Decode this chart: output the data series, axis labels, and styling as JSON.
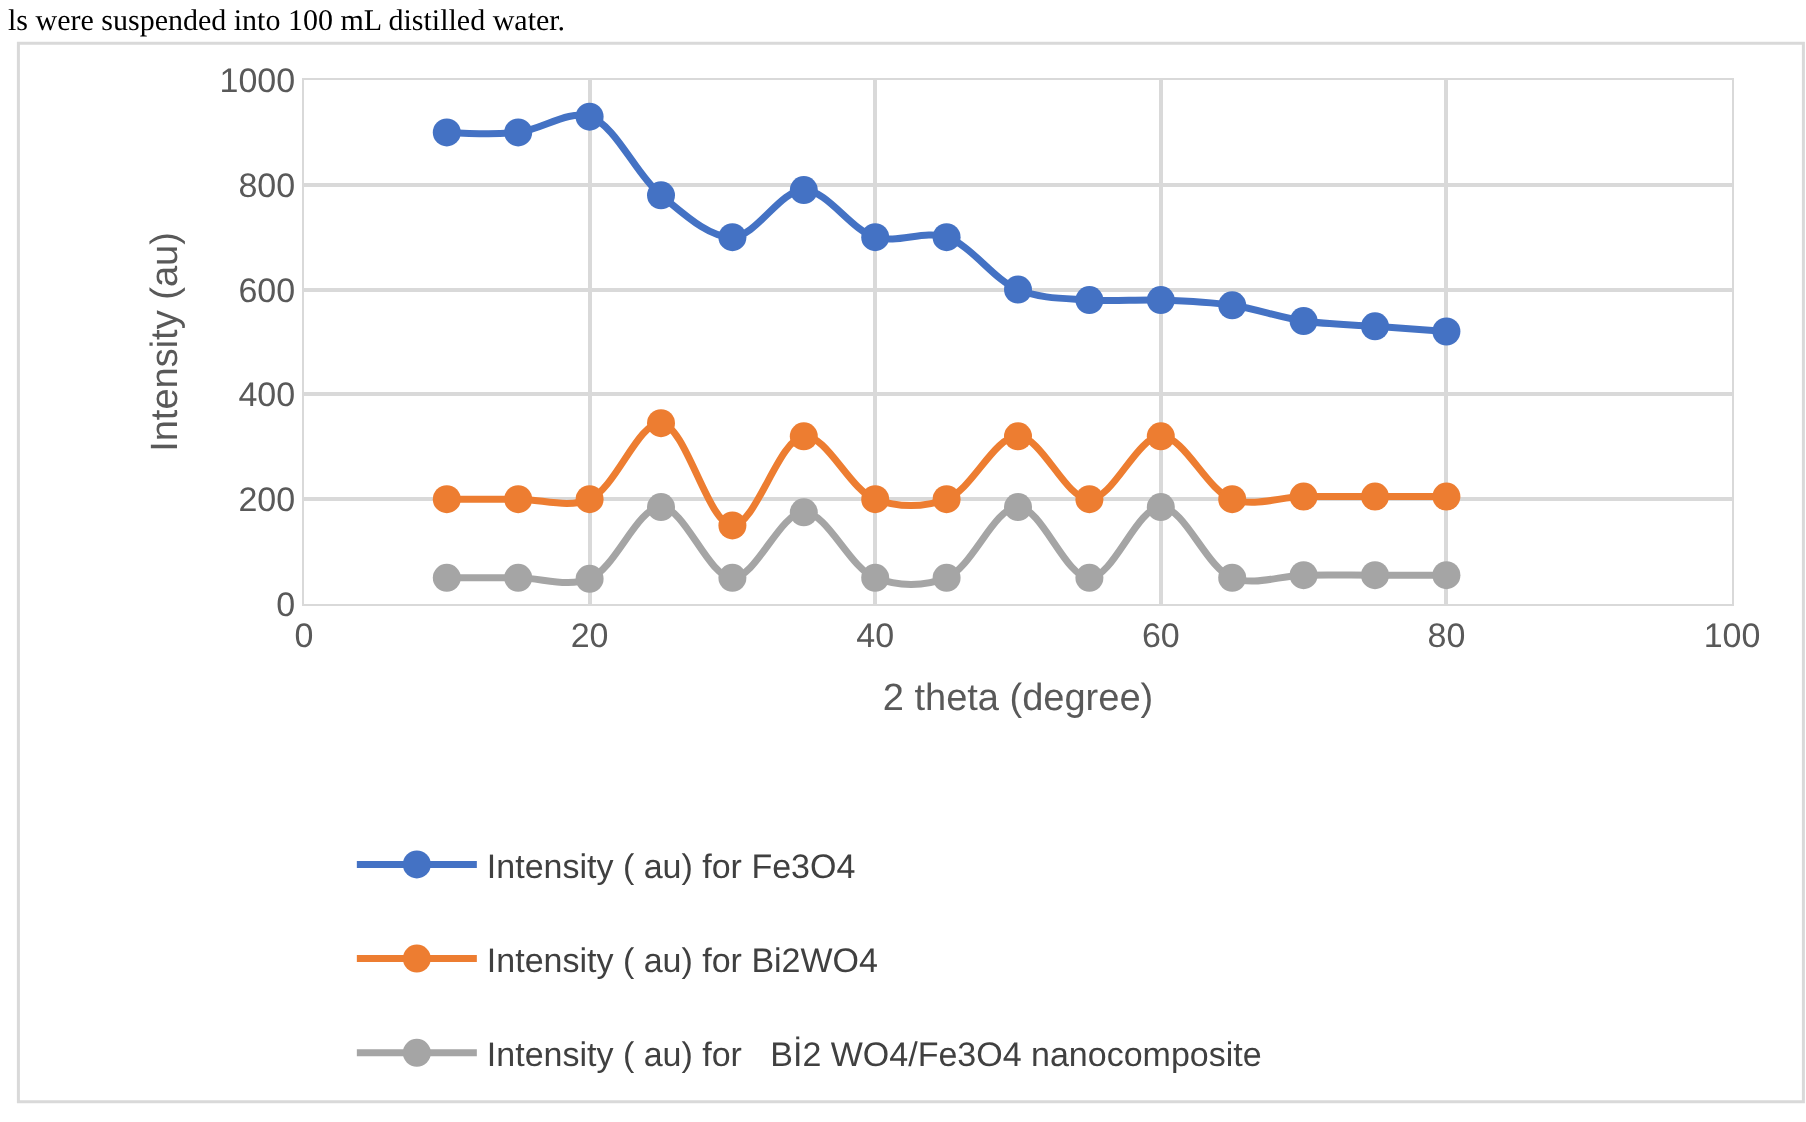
{
  "chart_data": {
    "type": "line",
    "xlabel": "2 theta (degree)",
    "ylabel": "Intensity (au)",
    "annotations": [
      "ls were suspended into 100 mL distilled water."
    ],
    "x": [
      10,
      15,
      20,
      25,
      30,
      35,
      40,
      45,
      50,
      55,
      60,
      65,
      70,
      75,
      80
    ],
    "series": [
      {
        "name": "Intensity ( au) for Fe3O4",
        "color": "#4472c4",
        "values": [
          900,
          900,
          930,
          780,
          700,
          790,
          700,
          700,
          600,
          580,
          580,
          570,
          540,
          530,
          520
        ]
      },
      {
        "name": "Intensity ( au) for Bi2WO4",
        "color": "#ed7d31",
        "values": [
          200,
          200,
          200,
          345,
          150,
          320,
          200,
          200,
          320,
          200,
          320,
          200,
          205,
          205,
          205
        ]
      },
      {
        "name": "Intensity ( au) for   Bİ2 WO4/Fe3O4 nanocomposite",
        "color": "#a5a5a5",
        "values": [
          50,
          50,
          48,
          185,
          50,
          175,
          50,
          50,
          185,
          50,
          185,
          50,
          55,
          55,
          55
        ]
      }
    ],
    "xlim": [
      0,
      100
    ],
    "xticks": [
      0,
      20,
      40,
      60,
      80,
      100
    ],
    "ylim": [
      0,
      1000
    ],
    "yticks": [
      0,
      200,
      400,
      600,
      800,
      1000
    ],
    "grid": true,
    "legend": "bottom",
    "marker": "circle",
    "line_style": "solid"
  }
}
